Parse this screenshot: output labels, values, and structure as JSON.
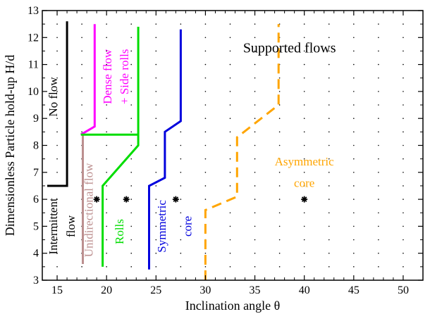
{
  "chart_data": {
    "type": "line",
    "xlabel": "Inclination angle θ",
    "ylabel": "Dimensionless Particle hold-up H/d",
    "xlim": [
      13.5,
      52
    ],
    "ylim": [
      3,
      13
    ],
    "x_ticks": [
      "15",
      "20",
      "25",
      "30",
      "35",
      "40",
      "45",
      "50"
    ],
    "y_ticks": [
      "3",
      "4",
      "5",
      "6",
      "7",
      "8",
      "9",
      "10",
      "11",
      "12",
      "13"
    ],
    "grid": "dotted points",
    "boundaries": [
      {
        "id": "no-flow",
        "color": "#000000",
        "dashed": false,
        "points": [
          [
            14,
            6.5
          ],
          [
            16,
            6.5
          ],
          [
            16,
            12.6
          ]
        ]
      },
      {
        "id": "unidirectional",
        "color": "#bc8f8f",
        "dashed": false,
        "points": [
          [
            17.6,
            3.6
          ],
          [
            17.6,
            8.4
          ]
        ]
      },
      {
        "id": "dense",
        "color": "#ff00ff",
        "dashed": false,
        "points": [
          [
            17.4,
            8.4
          ],
          [
            18.8,
            8.7
          ],
          [
            18.8,
            12.5
          ]
        ]
      },
      {
        "id": "rolls",
        "color": "#00dd00",
        "dashed": false,
        "points": [
          [
            19.6,
            3.5
          ],
          [
            19.6,
            6.5
          ],
          [
            23.2,
            8.0
          ],
          [
            23.2,
            12.4
          ]
        ]
      },
      {
        "id": "rolls-top",
        "color": "#00dd00",
        "dashed": false,
        "points": [
          [
            17.4,
            8.4
          ],
          [
            23.2,
            8.4
          ]
        ]
      },
      {
        "id": "symmetric",
        "color": "#0000dd",
        "dashed": false,
        "points": [
          [
            24.3,
            3.4
          ],
          [
            24.3,
            6.5
          ],
          [
            25.9,
            6.8
          ],
          [
            25.9,
            8.5
          ],
          [
            27.5,
            8.9
          ],
          [
            27.5,
            12.3
          ]
        ]
      },
      {
        "id": "asymmetric",
        "color": "#ffa500",
        "dashed": true,
        "points": [
          [
            30.0,
            3.0
          ],
          [
            30.0,
            5.6
          ],
          [
            33.2,
            6.1
          ],
          [
            33.2,
            8.3
          ],
          [
            37.4,
            9.5
          ],
          [
            37.4,
            12.5
          ]
        ]
      }
    ],
    "points": [
      [
        19,
        6
      ],
      [
        22,
        6
      ],
      [
        27,
        6
      ],
      [
        40,
        6
      ]
    ],
    "labels": [
      {
        "text": "Supported flows",
        "color": "#000000",
        "x": 38.5,
        "y": 11.6,
        "rotate": 0,
        "size": "big"
      },
      {
        "text": "Asymmetric",
        "color": "#ffa500",
        "x": 40,
        "y": 7.4,
        "rotate": 0,
        "size": "region"
      },
      {
        "text": "core",
        "color": "#ffa500",
        "x": 40,
        "y": 6.6,
        "rotate": 0,
        "size": "region"
      },
      {
        "text": "No flow",
        "color": "#000000",
        "x": 14.6,
        "y": 9.8,
        "rotate": -90,
        "size": "region"
      },
      {
        "text": "Dense flow",
        "color": "#ff00ff",
        "x": 20.1,
        "y": 10.55,
        "rotate": -90,
        "size": "region"
      },
      {
        "text": "+ Side rolls",
        "color": "#ff00ff",
        "x": 21.8,
        "y": 10.55,
        "rotate": -90,
        "size": "region"
      },
      {
        "text": "Unidirectional flow",
        "color": "#bc8f8f",
        "x": 18.2,
        "y": 5.6,
        "rotate": -90,
        "size": "region"
      },
      {
        "text": "Intermittent",
        "color": "#000000",
        "x": 14.6,
        "y": 5.0,
        "rotate": -90,
        "size": "region"
      },
      {
        "text": "flow",
        "color": "#000000",
        "x": 16.4,
        "y": 5.0,
        "rotate": -90,
        "size": "region"
      },
      {
        "text": "Rolls",
        "color": "#00dd00",
        "x": 21.3,
        "y": 4.8,
        "rotate": -90,
        "size": "region"
      },
      {
        "text": "Symmetric",
        "color": "#0000dd",
        "x": 25.6,
        "y": 5.0,
        "rotate": -90,
        "size": "region"
      },
      {
        "text": "core",
        "color": "#0000dd",
        "x": 28.2,
        "y": 5.0,
        "rotate": -90,
        "size": "region"
      }
    ]
  }
}
